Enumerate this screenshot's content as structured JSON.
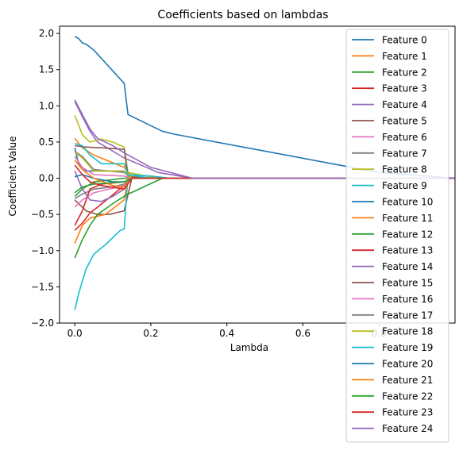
{
  "chart_data": {
    "type": "line",
    "title": "Coefficients based on lambdas",
    "xlabel": "Lambda",
    "ylabel": "Coefficient Value",
    "xlim": [
      -0.04,
      1.0
    ],
    "ylim": [
      -2.0,
      2.1
    ],
    "xticks": [
      0.0,
      0.2,
      0.4,
      0.6,
      0.8
    ],
    "xtick_labels": [
      "0.0",
      "0.2",
      "0.4",
      "0.6",
      "0.8"
    ],
    "yticks": [
      -2.0,
      -1.5,
      -1.0,
      -0.5,
      0.0,
      0.5,
      1.0,
      1.5,
      2.0
    ],
    "ytick_labels": [
      "−2.0",
      "−1.5",
      "−1.0",
      "−0.5",
      "0.0",
      "0.5",
      "1.0",
      "1.5",
      "2.0"
    ],
    "grid": false,
    "legend_position": "right",
    "series": [
      {
        "name": "Feature 0",
        "color": "#1f77b4",
        "points": [
          [
            0.0,
            1.96
          ],
          [
            0.01,
            1.93
          ],
          [
            0.02,
            1.87
          ],
          [
            0.03,
            1.85
          ],
          [
            0.05,
            1.77
          ],
          [
            0.13,
            1.31
          ],
          [
            0.14,
            0.88
          ],
          [
            0.23,
            0.65
          ],
          [
            0.26,
            0.61
          ],
          [
            0.8,
            0.08
          ],
          [
            1.0,
            0.0
          ]
        ]
      },
      {
        "name": "Feature 1",
        "color": "#ff7f0e",
        "points": [
          [
            0.0,
            0.55
          ],
          [
            0.02,
            0.42
          ],
          [
            0.05,
            0.32
          ],
          [
            0.13,
            0.15
          ],
          [
            0.15,
            0.02
          ],
          [
            0.22,
            0.0
          ],
          [
            1.0,
            0.0
          ]
        ]
      },
      {
        "name": "Feature 2",
        "color": "#2ca02c",
        "points": [
          [
            0.0,
            -0.25
          ],
          [
            0.02,
            -0.15
          ],
          [
            0.05,
            -0.05
          ],
          [
            0.13,
            0.0
          ],
          [
            1.0,
            0.0
          ]
        ]
      },
      {
        "name": "Feature 3",
        "color": "#d62728",
        "points": [
          [
            0.0,
            -0.72
          ],
          [
            0.02,
            -0.62
          ],
          [
            0.04,
            -0.48
          ],
          [
            0.06,
            -0.4
          ],
          [
            0.13,
            -0.1
          ],
          [
            0.15,
            0.0
          ],
          [
            1.0,
            0.0
          ]
        ]
      },
      {
        "name": "Feature 4",
        "color": "#9467bd",
        "points": [
          [
            0.0,
            1.06
          ],
          [
            0.02,
            0.85
          ],
          [
            0.04,
            0.65
          ],
          [
            0.06,
            0.5
          ],
          [
            0.13,
            0.28
          ],
          [
            0.22,
            0.08
          ],
          [
            0.31,
            0.0
          ],
          [
            1.0,
            0.0
          ]
        ]
      },
      {
        "name": "Feature 5",
        "color": "#8c564b",
        "points": [
          [
            0.0,
            -0.3
          ],
          [
            0.03,
            -0.45
          ],
          [
            0.06,
            -0.5
          ],
          [
            0.09,
            -0.5
          ],
          [
            0.13,
            -0.45
          ],
          [
            0.15,
            0.0
          ],
          [
            1.0,
            0.0
          ]
        ]
      },
      {
        "name": "Feature 6",
        "color": "#e377c2",
        "points": [
          [
            0.0,
            -0.4
          ],
          [
            0.02,
            -0.3
          ],
          [
            0.05,
            -0.2
          ],
          [
            0.13,
            -0.1
          ],
          [
            0.15,
            0.0
          ],
          [
            1.0,
            0.0
          ]
        ]
      },
      {
        "name": "Feature 7",
        "color": "#7f7f7f",
        "points": [
          [
            0.0,
            -0.28
          ],
          [
            0.02,
            -0.22
          ],
          [
            0.05,
            -0.15
          ],
          [
            0.1,
            -0.12
          ],
          [
            0.13,
            -0.08
          ],
          [
            0.15,
            0.0
          ],
          [
            1.0,
            0.0
          ]
        ]
      },
      {
        "name": "Feature 8",
        "color": "#bcbd22",
        "points": [
          [
            0.0,
            0.87
          ],
          [
            0.02,
            0.6
          ],
          [
            0.04,
            0.5
          ],
          [
            0.07,
            0.54
          ],
          [
            0.1,
            0.5
          ],
          [
            0.13,
            0.43
          ],
          [
            0.14,
            0.08
          ],
          [
            0.2,
            0.02
          ],
          [
            0.25,
            0.0
          ],
          [
            1.0,
            0.0
          ]
        ]
      },
      {
        "name": "Feature 9",
        "color": "#17becf",
        "points": [
          [
            0.0,
            -1.82
          ],
          [
            0.01,
            -1.6
          ],
          [
            0.02,
            -1.42
          ],
          [
            0.03,
            -1.25
          ],
          [
            0.05,
            -1.05
          ],
          [
            0.08,
            -0.92
          ],
          [
            0.12,
            -0.72
          ],
          [
            0.13,
            -0.7
          ],
          [
            0.14,
            0.05
          ],
          [
            0.2,
            0.03
          ],
          [
            0.25,
            0.0
          ],
          [
            1.0,
            0.0
          ]
        ]
      },
      {
        "name": "Feature 10",
        "color": "#1f77b4",
        "points": [
          [
            0.0,
            0.42
          ],
          [
            0.01,
            0.2
          ],
          [
            0.03,
            0.1
          ],
          [
            0.07,
            0.1
          ],
          [
            0.13,
            0.1
          ],
          [
            0.15,
            0.0
          ],
          [
            1.0,
            0.0
          ]
        ]
      },
      {
        "name": "Feature 11",
        "color": "#ff7f0e",
        "points": [
          [
            0.0,
            -0.9
          ],
          [
            0.02,
            -0.65
          ],
          [
            0.04,
            -0.55
          ],
          [
            0.08,
            -0.5
          ],
          [
            0.13,
            -0.3
          ],
          [
            0.14,
            0.0
          ],
          [
            1.0,
            0.0
          ]
        ]
      },
      {
        "name": "Feature 12",
        "color": "#2ca02c",
        "points": [
          [
            0.0,
            -1.1
          ],
          [
            0.02,
            -0.85
          ],
          [
            0.04,
            -0.65
          ],
          [
            0.06,
            -0.5
          ],
          [
            0.1,
            -0.35
          ],
          [
            0.13,
            -0.25
          ],
          [
            0.14,
            -0.22
          ],
          [
            0.23,
            0.0
          ],
          [
            1.0,
            0.0
          ]
        ]
      },
      {
        "name": "Feature 13",
        "color": "#d62728",
        "points": [
          [
            0.0,
            -0.65
          ],
          [
            0.02,
            -0.45
          ],
          [
            0.04,
            -0.15
          ],
          [
            0.07,
            -0.08
          ],
          [
            0.13,
            -0.05
          ],
          [
            0.15,
            0.0
          ],
          [
            1.0,
            0.0
          ]
        ]
      },
      {
        "name": "Feature 14",
        "color": "#9467bd",
        "points": [
          [
            0.0,
            0.1
          ],
          [
            0.02,
            -0.15
          ],
          [
            0.04,
            -0.3
          ],
          [
            0.07,
            -0.32
          ],
          [
            0.1,
            -0.25
          ],
          [
            0.13,
            -0.15
          ],
          [
            0.15,
            0.0
          ],
          [
            1.0,
            0.0
          ]
        ]
      },
      {
        "name": "Feature 15",
        "color": "#8c564b",
        "points": [
          [
            0.0,
            0.45
          ],
          [
            0.03,
            0.43
          ],
          [
            0.07,
            0.42
          ],
          [
            0.13,
            0.4
          ],
          [
            0.14,
            0.02
          ],
          [
            0.2,
            0.0
          ],
          [
            1.0,
            0.0
          ]
        ]
      },
      {
        "name": "Feature 16",
        "color": "#e377c2",
        "points": [
          [
            0.0,
            0.3
          ],
          [
            0.02,
            0.15
          ],
          [
            0.05,
            0.05
          ],
          [
            0.13,
            0.03
          ],
          [
            0.15,
            0.0
          ],
          [
            1.0,
            0.0
          ]
        ]
      },
      {
        "name": "Feature 17",
        "color": "#7f7f7f",
        "points": [
          [
            0.0,
            0.37
          ],
          [
            0.02,
            0.3
          ],
          [
            0.05,
            0.12
          ],
          [
            0.09,
            0.1
          ],
          [
            0.13,
            0.08
          ],
          [
            0.15,
            0.0
          ],
          [
            1.0,
            0.0
          ]
        ]
      },
      {
        "name": "Feature 18",
        "color": "#bcbd22",
        "points": [
          [
            0.0,
            0.36
          ],
          [
            0.02,
            0.28
          ],
          [
            0.05,
            0.1
          ],
          [
            0.13,
            0.1
          ],
          [
            0.15,
            0.0
          ],
          [
            1.0,
            0.0
          ]
        ]
      },
      {
        "name": "Feature 19",
        "color": "#17becf",
        "points": [
          [
            0.0,
            0.48
          ],
          [
            0.02,
            0.45
          ],
          [
            0.04,
            0.32
          ],
          [
            0.07,
            0.2
          ],
          [
            0.13,
            0.2
          ],
          [
            0.14,
            0.05
          ],
          [
            0.2,
            0.0
          ],
          [
            1.0,
            0.0
          ]
        ]
      },
      {
        "name": "Feature 20",
        "color": "#1f77b4",
        "points": [
          [
            0.0,
            0.02
          ],
          [
            0.02,
            0.05
          ],
          [
            0.05,
            0.0
          ],
          [
            0.1,
            -0.05
          ],
          [
            0.13,
            -0.05
          ],
          [
            0.15,
            0.0
          ],
          [
            1.0,
            0.0
          ]
        ]
      },
      {
        "name": "Feature 21",
        "color": "#ff7f0e",
        "points": [
          [
            0.0,
            0.25
          ],
          [
            0.02,
            0.12
          ],
          [
            0.05,
            0.0
          ],
          [
            0.1,
            -0.1
          ],
          [
            0.13,
            -0.12
          ],
          [
            0.15,
            0.0
          ],
          [
            1.0,
            0.0
          ]
        ]
      },
      {
        "name": "Feature 22",
        "color": "#2ca02c",
        "points": [
          [
            0.0,
            -0.2
          ],
          [
            0.02,
            -0.12
          ],
          [
            0.05,
            -0.08
          ],
          [
            0.13,
            -0.05
          ],
          [
            0.15,
            0.0
          ],
          [
            1.0,
            0.0
          ]
        ]
      },
      {
        "name": "Feature 23",
        "color": "#d62728",
        "points": [
          [
            0.0,
            0.18
          ],
          [
            0.02,
            0.05
          ],
          [
            0.04,
            -0.05
          ],
          [
            0.07,
            -0.1
          ],
          [
            0.13,
            -0.15
          ],
          [
            0.15,
            0.0
          ],
          [
            1.0,
            0.0
          ]
        ]
      },
      {
        "name": "Feature 24",
        "color": "#9467bd",
        "points": [
          [
            0.0,
            1.08
          ],
          [
            0.02,
            0.88
          ],
          [
            0.04,
            0.68
          ],
          [
            0.06,
            0.55
          ],
          [
            0.1,
            0.45
          ],
          [
            0.13,
            0.35
          ],
          [
            0.2,
            0.15
          ],
          [
            0.31,
            0.0
          ],
          [
            1.0,
            0.0
          ]
        ]
      }
    ]
  }
}
